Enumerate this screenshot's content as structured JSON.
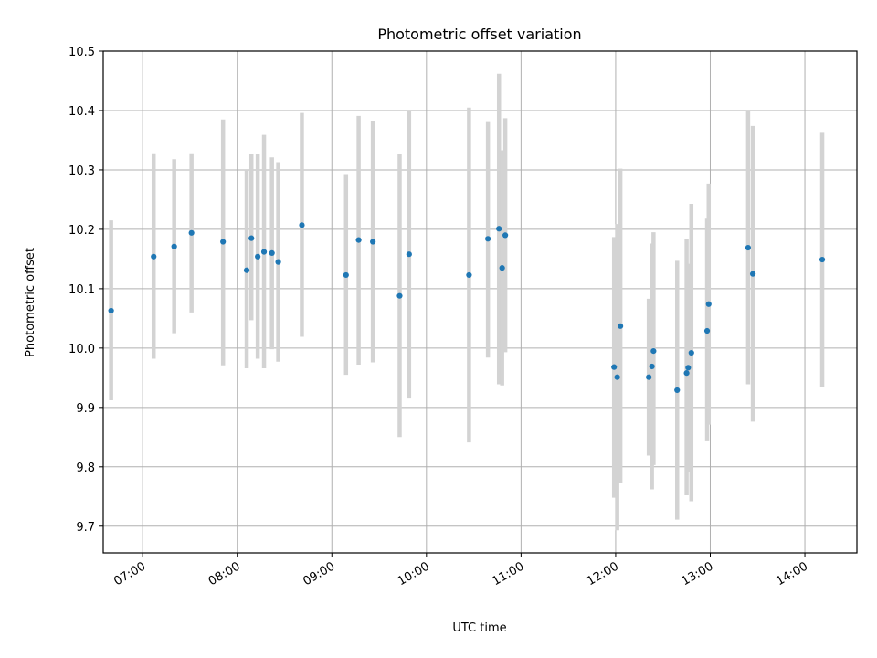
{
  "chart_data": {
    "type": "scatter",
    "title": "Photometric offset variation",
    "xlabel": "UTC time",
    "ylabel": "Photometric offset",
    "x_axis_type": "time",
    "xlim": [
      "06:35",
      "14:33"
    ],
    "ylim": [
      9.655,
      10.5
    ],
    "x_ticks": [
      "07:00",
      "08:00",
      "09:00",
      "10:00",
      "11:00",
      "12:00",
      "13:00",
      "14:00"
    ],
    "y_ticks": [
      "9.7",
      "9.8",
      "9.9",
      "10.0",
      "10.1",
      "10.2",
      "10.3",
      "10.4",
      "10.5"
    ],
    "grid": true,
    "colors": {
      "point": "#1f77b4",
      "errorbar": "#d3d3d3",
      "grid": "#b0b0b0"
    },
    "series": [
      {
        "points": [
          {
            "x": "06:40",
            "y": 10.063,
            "ylow": 9.912,
            "yhigh": 10.215
          },
          {
            "x": "07:07",
            "y": 10.154,
            "ylow": 9.982,
            "yhigh": 10.328
          },
          {
            "x": "07:20",
            "y": 10.171,
            "ylow": 10.025,
            "yhigh": 10.318
          },
          {
            "x": "07:31",
            "y": 10.194,
            "ylow": 10.06,
            "yhigh": 10.328
          },
          {
            "x": "07:51",
            "y": 10.179,
            "ylow": 9.971,
            "yhigh": 10.385
          },
          {
            "x": "08:06",
            "y": 10.131,
            "ylow": 9.966,
            "yhigh": 10.3
          },
          {
            "x": "08:09",
            "y": 10.185,
            "ylow": 10.047,
            "yhigh": 10.326
          },
          {
            "x": "08:13",
            "y": 10.154,
            "ylow": 9.982,
            "yhigh": 10.326
          },
          {
            "x": "08:17",
            "y": 10.162,
            "ylow": 9.966,
            "yhigh": 10.359
          },
          {
            "x": "08:22",
            "y": 10.16,
            "ylow": 9.998,
            "yhigh": 10.321
          },
          {
            "x": "08:26",
            "y": 10.145,
            "ylow": 9.977,
            "yhigh": 10.313
          },
          {
            "x": "08:41",
            "y": 10.207,
            "ylow": 10.019,
            "yhigh": 10.396
          },
          {
            "x": "09:09",
            "y": 10.123,
            "ylow": 9.955,
            "yhigh": 10.293
          },
          {
            "x": "09:17",
            "y": 10.182,
            "ylow": 9.972,
            "yhigh": 10.391
          },
          {
            "x": "09:26",
            "y": 10.179,
            "ylow": 9.976,
            "yhigh": 10.383
          },
          {
            "x": "09:43",
            "y": 10.088,
            "ylow": 9.85,
            "yhigh": 10.327
          },
          {
            "x": "09:49",
            "y": 10.158,
            "ylow": 9.915,
            "yhigh": 10.4
          },
          {
            "x": "10:27",
            "y": 10.123,
            "ylow": 9.841,
            "yhigh": 10.405
          },
          {
            "x": "10:39",
            "y": 10.184,
            "ylow": 9.984,
            "yhigh": 10.382
          },
          {
            "x": "10:46",
            "y": 10.201,
            "ylow": 9.939,
            "yhigh": 10.462
          },
          {
            "x": "10:48",
            "y": 10.135,
            "ylow": 9.937,
            "yhigh": 10.333
          },
          {
            "x": "10:50",
            "y": 10.19,
            "ylow": 9.993,
            "yhigh": 10.387
          },
          {
            "x": "11:59",
            "y": 9.968,
            "ylow": 9.748,
            "yhigh": 10.187
          },
          {
            "x": "12:01",
            "y": 9.951,
            "ylow": 9.693,
            "yhigh": 10.209
          },
          {
            "x": "12:03",
            "y": 10.037,
            "ylow": 9.772,
            "yhigh": 10.302
          },
          {
            "x": "12:21",
            "y": 9.951,
            "ylow": 9.819,
            "yhigh": 10.083
          },
          {
            "x": "12:23",
            "y": 9.969,
            "ylow": 9.762,
            "yhigh": 10.176
          },
          {
            "x": "12:24",
            "y": 9.995,
            "ylow": 9.803,
            "yhigh": 10.195
          },
          {
            "x": "12:39",
            "y": 9.929,
            "ylow": 9.711,
            "yhigh": 10.147
          },
          {
            "x": "12:45",
            "y": 9.958,
            "ylow": 9.752,
            "yhigh": 10.183
          },
          {
            "x": "12:46",
            "y": 9.967,
            "ylow": 9.791,
            "yhigh": 10.142
          },
          {
            "x": "12:48",
            "y": 9.992,
            "ylow": 9.742,
            "yhigh": 10.243
          },
          {
            "x": "12:58",
            "y": 10.029,
            "ylow": 9.843,
            "yhigh": 10.218
          },
          {
            "x": "12:59",
            "y": 10.074,
            "ylow": 9.871,
            "yhigh": 10.277
          },
          {
            "x": "13:24",
            "y": 10.169,
            "ylow": 9.939,
            "yhigh": 10.4
          },
          {
            "x": "13:27",
            "y": 10.125,
            "ylow": 9.876,
            "yhigh": 10.374
          },
          {
            "x": "14:11",
            "y": 10.149,
            "ylow": 9.934,
            "yhigh": 10.364
          }
        ]
      }
    ]
  }
}
